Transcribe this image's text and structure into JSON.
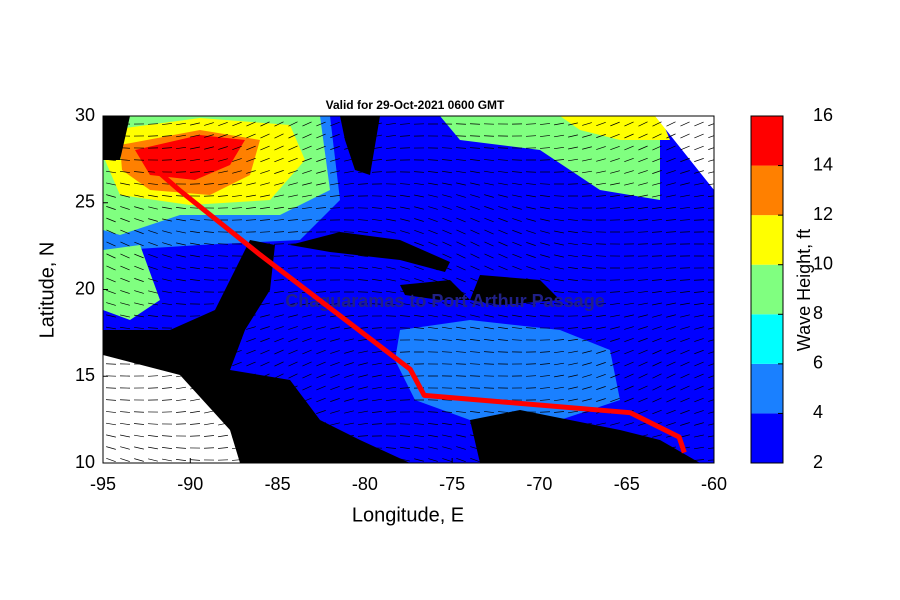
{
  "chart_data": {
    "type": "map",
    "title": "Valid for 29-Oct-2021 0600 GMT",
    "xlabel": "Longitude, E",
    "ylabel": "Latitude, N",
    "xlim": [
      -95,
      -60
    ],
    "xticks": [
      -95,
      -90,
      -85,
      -80,
      -75,
      -70,
      -65,
      -60
    ],
    "ylim": [
      10,
      30
    ],
    "yticks": [
      10,
      15,
      20,
      25,
      30
    ],
    "annotation": "Chaguaramas to Port Arthur Passage",
    "route": {
      "color": "#ff0000",
      "x": [
        -61.7,
        -62.0,
        -64.8,
        -76.6,
        -77.4,
        -86.0,
        -90.6,
        -92.3
      ],
      "y": [
        10.6,
        11.5,
        12.9,
        13.9,
        15.4,
        22.0,
        25.7,
        27.2
      ]
    },
    "colorbar": {
      "label": "Wave Height, ft",
      "lim": [
        2,
        16
      ],
      "ticks": [
        2,
        4,
        6,
        8,
        10,
        12,
        14,
        16
      ],
      "colors": [
        "#0000ff",
        "#1a80ff",
        "#00ffff",
        "#80ff80",
        "#ffff00",
        "#ff8000",
        "#ff0000"
      ]
    }
  }
}
